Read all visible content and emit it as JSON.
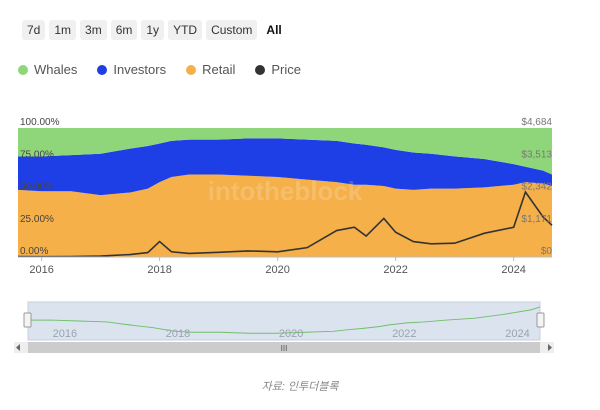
{
  "range_buttons": [
    {
      "label": "7d",
      "active": false
    },
    {
      "label": "1m",
      "active": false
    },
    {
      "label": "3m",
      "active": false
    },
    {
      "label": "6m",
      "active": false
    },
    {
      "label": "1y",
      "active": false
    },
    {
      "label": "YTD",
      "active": false
    },
    {
      "label": "Custom",
      "active": false
    },
    {
      "label": "All",
      "active": true
    }
  ],
  "caption": "자료: 인투더블록",
  "watermark": "intotheblock",
  "colors": {
    "whales": "#8fd67a",
    "investors": "#1f3fe6",
    "retail": "#f5b04a",
    "price": "#333333"
  },
  "chart_data": {
    "type": "area",
    "stacked_percent": true,
    "legend_position": "top-left",
    "grid": false,
    "x": [
      2015.6,
      2016.0,
      2016.5,
      2017.0,
      2017.5,
      2017.8,
      2018.0,
      2018.2,
      2018.5,
      2019.0,
      2019.5,
      2020.0,
      2020.5,
      2021.0,
      2021.3,
      2021.5,
      2021.8,
      2022.0,
      2022.3,
      2022.6,
      2023.0,
      2023.5,
      2024.0,
      2024.2,
      2024.5,
      2024.65
    ],
    "series": [
      {
        "name": "Whales",
        "values": [
          22,
          22,
          21,
          20,
          16,
          14,
          12,
          10,
          9,
          9,
          8,
          8,
          9,
          10,
          12,
          13,
          15,
          17,
          19,
          20,
          22,
          24,
          28,
          30,
          33,
          36
        ]
      },
      {
        "name": "Investors",
        "values": [
          26,
          27,
          28,
          32,
          34,
          33,
          30,
          28,
          27,
          27,
          29,
          30,
          31,
          32,
          32,
          31,
          30,
          30,
          29,
          27,
          25,
          22,
          16,
          12,
          10,
          9
        ]
      },
      {
        "name": "Retail",
        "values": [
          52,
          51,
          51,
          48,
          50,
          53,
          58,
          62,
          64,
          64,
          63,
          62,
          60,
          58,
          56,
          56,
          55,
          53,
          52,
          53,
          53,
          54,
          56,
          58,
          57,
          55
        ]
      }
    ],
    "price": {
      "name": "Price",
      "values": [
        15,
        12,
        18,
        35,
        90,
        160,
        560,
        190,
        130,
        170,
        220,
        190,
        340,
        960,
        1080,
        760,
        1400,
        900,
        560,
        480,
        500,
        860,
        1080,
        2360,
        1450,
        1150
      ]
    },
    "y_left": {
      "ticks": [
        "0.00%",
        "25.00%",
        "50.00%",
        "75.00%",
        "100.00%"
      ],
      "ylim": [
        0,
        100
      ]
    },
    "y_right": {
      "ticks": [
        "$0",
        "$1,171",
        "$2,342",
        "$3,513",
        "$4,684"
      ],
      "ylim": [
        0,
        4684
      ]
    },
    "x_ticks": [
      {
        "value": 2016,
        "label": "2016"
      },
      {
        "value": 2018,
        "label": "2018"
      },
      {
        "value": 2020,
        "label": "2020"
      },
      {
        "value": 2022,
        "label": "2022"
      },
      {
        "value": 2024,
        "label": "2024"
      }
    ],
    "navigator_ticks": [
      "2016",
      "2018",
      "2020",
      "2022",
      "2024"
    ],
    "navigator_handle_label": "III"
  }
}
